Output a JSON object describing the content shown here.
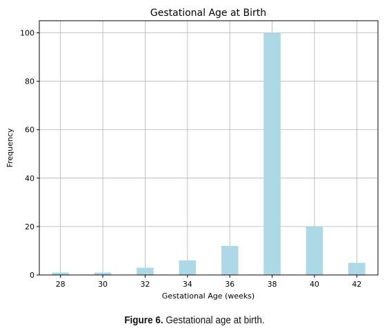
{
  "chart_data": {
    "type": "bar",
    "title": "Gestational Age at Birth",
    "xlabel": "Gestational Age (weeks)",
    "ylabel": "Frequency",
    "x": [
      28,
      30,
      32,
      34,
      36,
      38,
      40,
      42
    ],
    "values": [
      1,
      1,
      3,
      6,
      12,
      100,
      20,
      5
    ],
    "xlim": [
      27,
      43
    ],
    "ylim": [
      0,
      105
    ],
    "xticks": [
      28,
      30,
      32,
      34,
      36,
      38,
      40,
      42
    ],
    "yticks": [
      0,
      20,
      40,
      60,
      80,
      100
    ],
    "grid": true,
    "bar_color": "#add8e6"
  },
  "caption": {
    "label": "Figure 6.",
    "text": " Gestational age at birth."
  }
}
